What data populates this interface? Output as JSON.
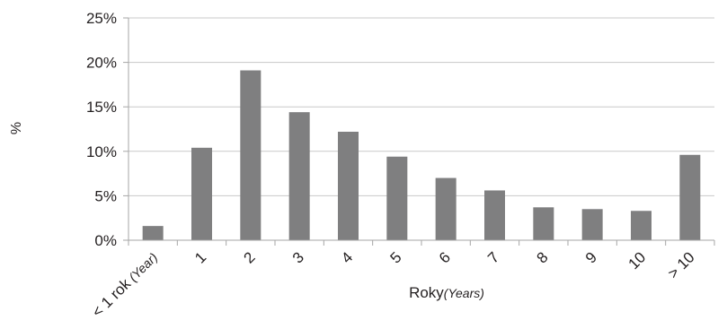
{
  "chart_data": {
    "type": "bar",
    "categories": [
      "< 1 rok",
      "1",
      "2",
      "3",
      "4",
      "5",
      "6",
      "7",
      "8",
      "9",
      "10",
      "> 10"
    ],
    "first_category_suffix": "(Year)",
    "values": [
      1.6,
      10.4,
      19.1,
      14.4,
      12.2,
      9.4,
      7.0,
      5.6,
      3.7,
      3.5,
      3.3,
      9.6
    ],
    "ylim": [
      0,
      25
    ],
    "yticks": [
      0,
      5,
      10,
      15,
      20,
      25
    ],
    "ytick_format": "%",
    "ylabel": "%",
    "xlabel": "Roky",
    "xlabel_suffix": "(Years)",
    "grid": true,
    "colors": {
      "bar": "#7f7f80",
      "grid": "#c8c8c8",
      "axis": "#a6a6a6",
      "text": "#231f20"
    }
  }
}
